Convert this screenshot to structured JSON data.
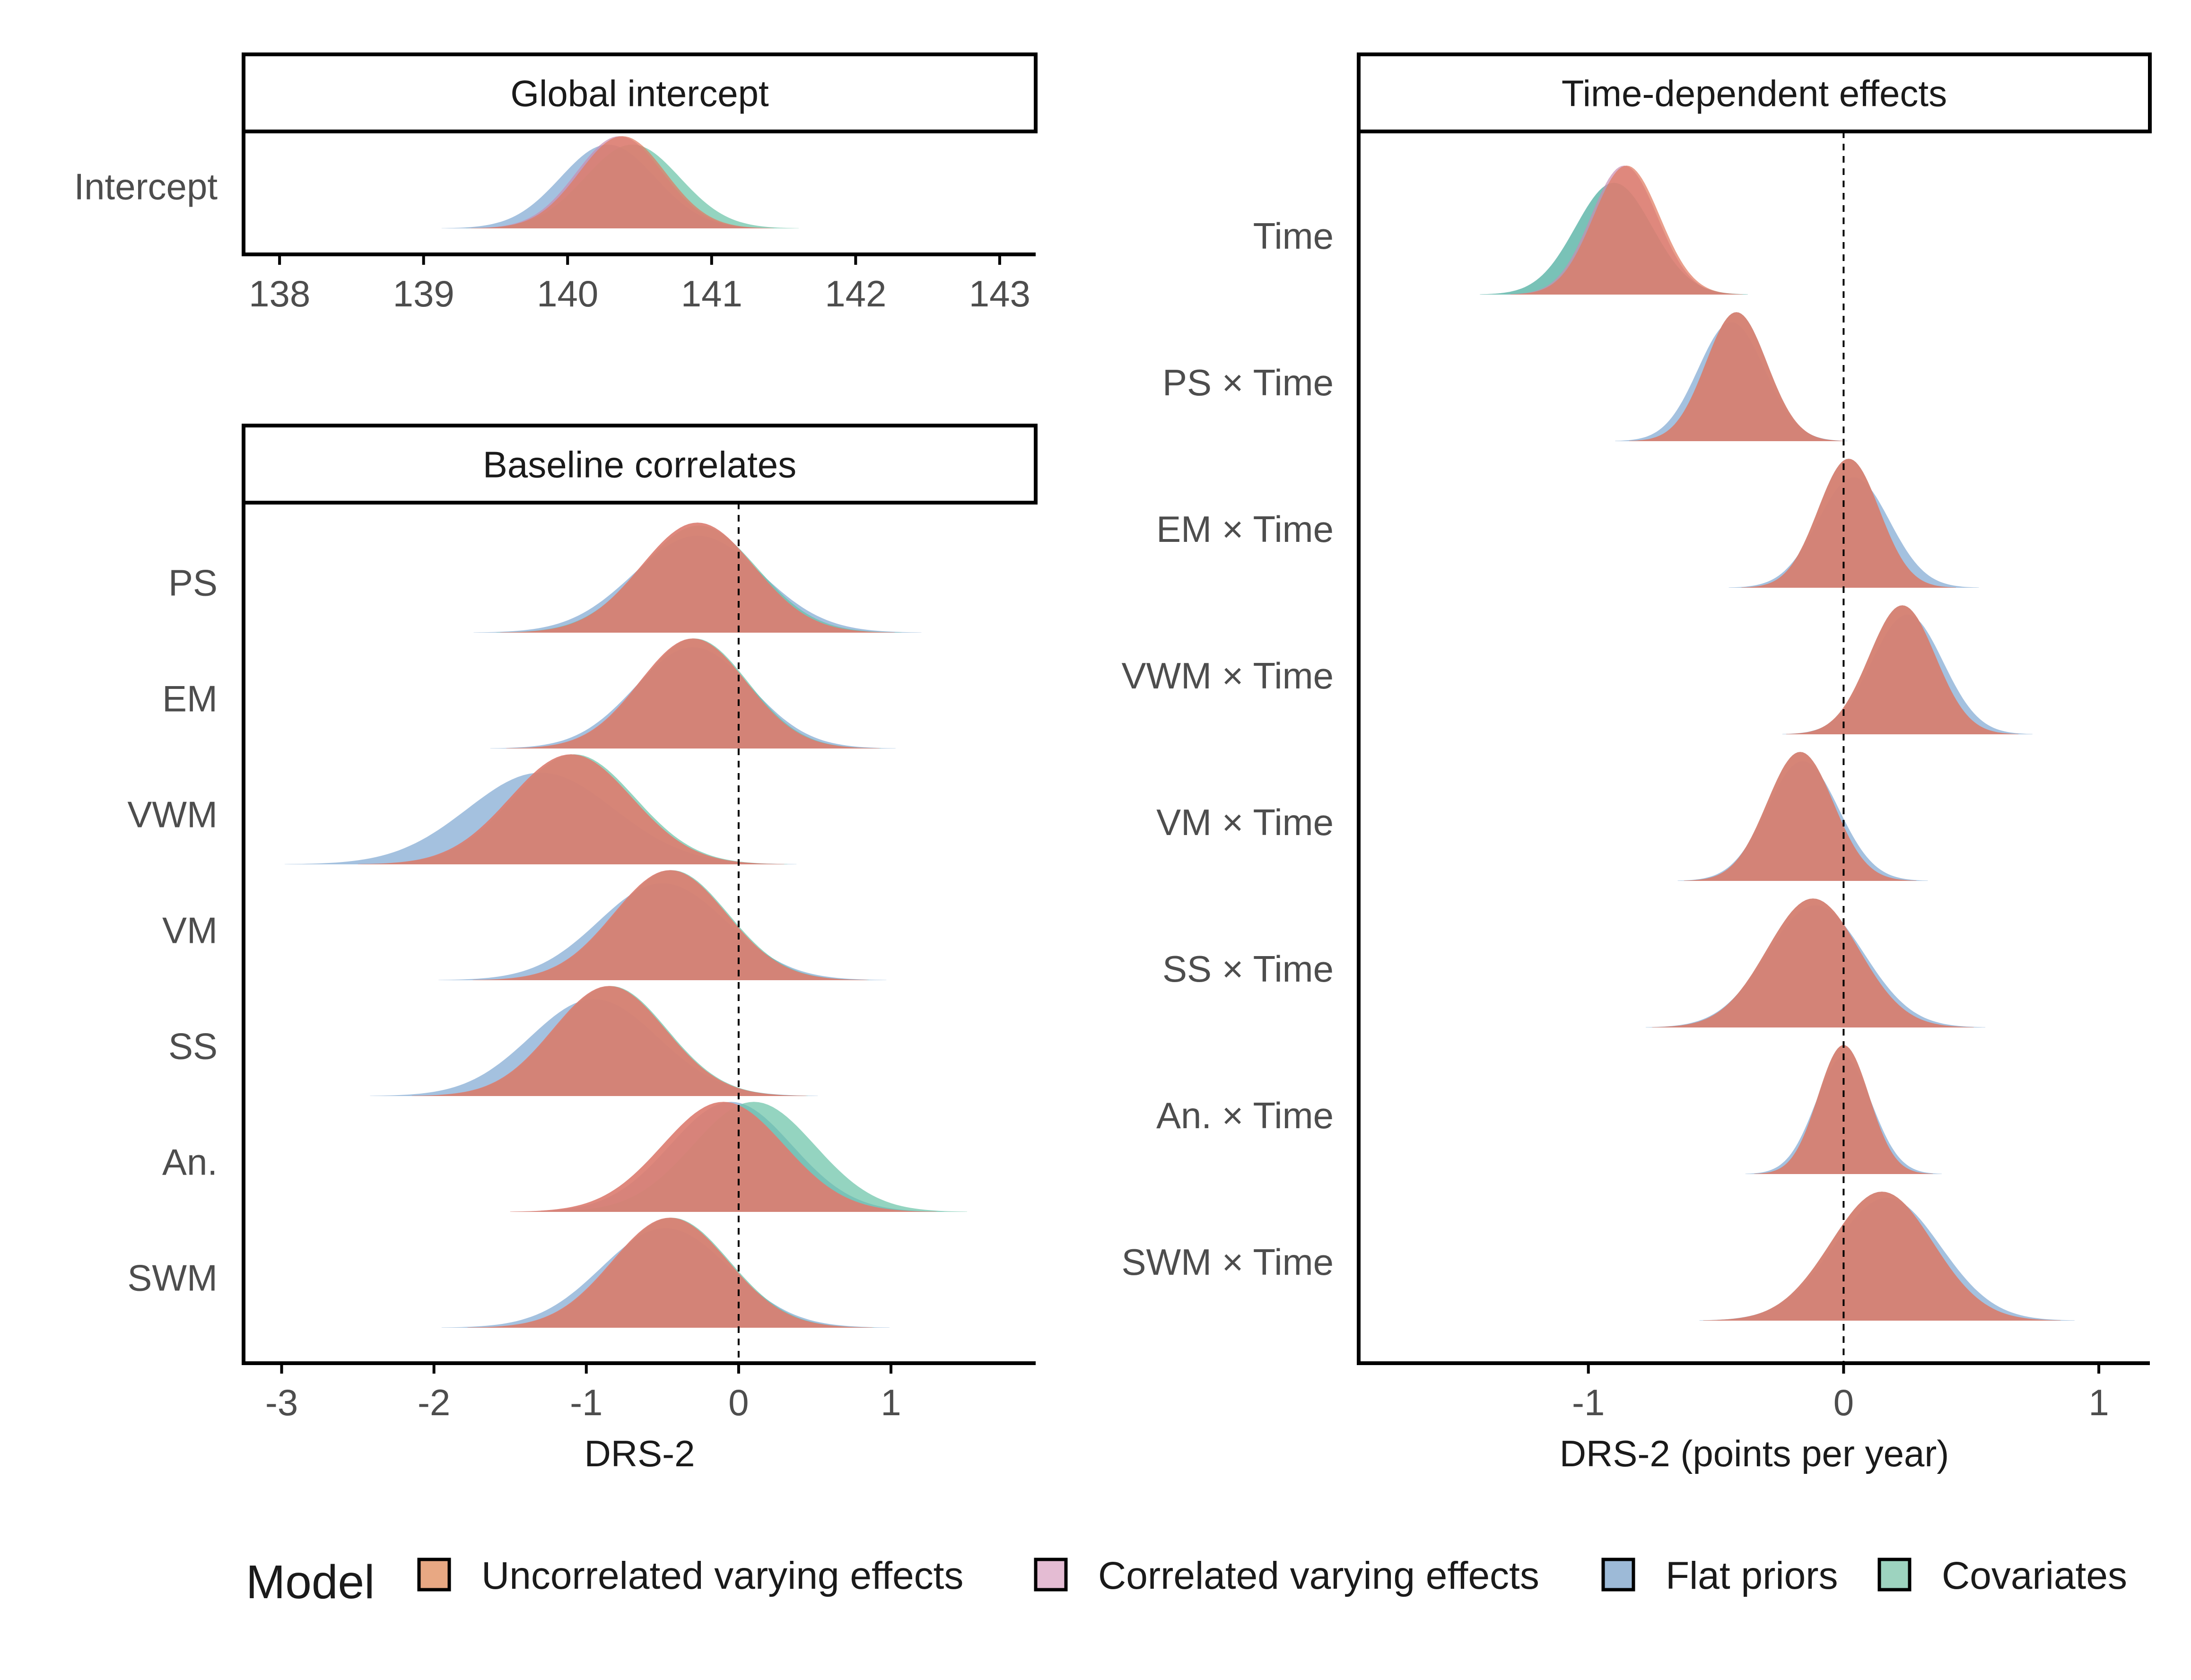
{
  "legend": {
    "title": "Model",
    "entries": [
      {
        "name": "Uncorrelated varying effects",
        "color": "#e8a883"
      },
      {
        "name": "Correlated varying effects",
        "color": "#e4bcd3"
      },
      {
        "name": "Flat priors",
        "color": "#9dbad7"
      },
      {
        "name": "Covariates",
        "color": "#9dd3bf"
      }
    ]
  },
  "render_colors": {
    "Uncorrelated varying effects": "#e07a5f",
    "Correlated varying effects": "#c98bb0",
    "Flat priors": "#7ea6d1",
    "Covariates": "#66c2a5",
    "overlap": "#9c7066"
  },
  "chart_data": [
    {
      "type": "area",
      "title": "Global intercept",
      "xlabel": "",
      "xlim": [
        137.75,
        143.25
      ],
      "xticks": [
        138,
        139,
        140,
        141,
        142,
        143
      ],
      "reference_line": null,
      "rows": [
        {
          "label": "Intercept",
          "series": [
            {
              "name": "Uncorrelated varying effects",
              "mean": 140.38,
              "sd": 0.3
            },
            {
              "name": "Correlated varying effects",
              "mean": 140.36,
              "sd": 0.3
            },
            {
              "name": "Flat priors",
              "mean": 140.28,
              "sd": 0.33
            },
            {
              "name": "Covariates",
              "mean": 140.45,
              "sd": 0.33
            }
          ]
        }
      ]
    },
    {
      "type": "area",
      "title": "Baseline correlates",
      "xlabel": "DRS-2",
      "xlim": [
        -3.25,
        1.95
      ],
      "xticks": [
        -3,
        -2,
        -1,
        0,
        1
      ],
      "reference_line": 0,
      "rows": [
        {
          "label": "PS",
          "series": [
            {
              "name": "Uncorrelated varying effects",
              "mean": -0.27,
              "sd": 0.37
            },
            {
              "name": "Correlated varying effects",
              "mean": -0.27,
              "sd": 0.37
            },
            {
              "name": "Flat priors",
              "mean": -0.27,
              "sd": 0.42
            },
            {
              "name": "Covariates",
              "mean": -0.26,
              "sd": 0.38
            }
          ]
        },
        {
          "label": "EM",
          "series": [
            {
              "name": "Uncorrelated varying effects",
              "mean": -0.3,
              "sd": 0.35
            },
            {
              "name": "Correlated varying effects",
              "mean": -0.3,
              "sd": 0.35
            },
            {
              "name": "Flat priors",
              "mean": -0.3,
              "sd": 0.38
            },
            {
              "name": "Covariates",
              "mean": -0.29,
              "sd": 0.35
            }
          ]
        },
        {
          "label": "VWM",
          "series": [
            {
              "name": "Uncorrelated varying effects",
              "mean": -1.1,
              "sd": 0.4
            },
            {
              "name": "Correlated varying effects",
              "mean": -1.1,
              "sd": 0.4
            },
            {
              "name": "Flat priors",
              "mean": -1.3,
              "sd": 0.48
            },
            {
              "name": "Covariates",
              "mean": -1.08,
              "sd": 0.4
            }
          ]
        },
        {
          "label": "VM",
          "series": [
            {
              "name": "Uncorrelated varying effects",
              "mean": -0.45,
              "sd": 0.37
            },
            {
              "name": "Correlated varying effects",
              "mean": -0.45,
              "sd": 0.37
            },
            {
              "name": "Flat priors",
              "mean": -0.5,
              "sd": 0.42
            },
            {
              "name": "Covariates",
              "mean": -0.44,
              "sd": 0.37
            }
          ]
        },
        {
          "label": "SS",
          "series": [
            {
              "name": "Uncorrelated varying effects",
              "mean": -0.85,
              "sd": 0.37
            },
            {
              "name": "Correlated varying effects",
              "mean": -0.85,
              "sd": 0.37
            },
            {
              "name": "Flat priors",
              "mean": -0.95,
              "sd": 0.42
            },
            {
              "name": "Covariates",
              "mean": -0.84,
              "sd": 0.37
            }
          ]
        },
        {
          "label": "An.",
          "series": [
            {
              "name": "Uncorrelated varying effects",
              "mean": -0.1,
              "sd": 0.4
            },
            {
              "name": "Correlated varying effects",
              "mean": -0.1,
              "sd": 0.4
            },
            {
              "name": "Flat priors",
              "mean": -0.05,
              "sd": 0.4
            },
            {
              "name": "Covariates",
              "mean": 0.1,
              "sd": 0.4
            }
          ]
        },
        {
          "label": "SWM",
          "series": [
            {
              "name": "Uncorrelated varying effects",
              "mean": -0.45,
              "sd": 0.38
            },
            {
              "name": "Correlated varying effects",
              "mean": -0.45,
              "sd": 0.38
            },
            {
              "name": "Flat priors",
              "mean": -0.48,
              "sd": 0.42
            },
            {
              "name": "Covariates",
              "mean": -0.44,
              "sd": 0.38
            }
          ]
        }
      ]
    },
    {
      "type": "area",
      "title": "Time-dependent effects",
      "xlabel": "DRS-2 (points per year)",
      "xlim": [
        -1.9,
        1.2
      ],
      "xticks": [
        -1,
        0,
        1
      ],
      "reference_line": 0,
      "rows": [
        {
          "label": "Time",
          "series": [
            {
              "name": "Uncorrelated varying effects",
              "mean": -0.85,
              "sd": 0.13
            },
            {
              "name": "Correlated varying effects",
              "mean": -0.86,
              "sd": 0.13
            },
            {
              "name": "Flat priors",
              "mean": -0.9,
              "sd": 0.15
            },
            {
              "name": "Covariates",
              "mean": -0.9,
              "sd": 0.15
            }
          ]
        },
        {
          "label": "PS × Time",
          "series": [
            {
              "name": "Uncorrelated varying effects",
              "mean": -0.42,
              "sd": 0.12
            },
            {
              "name": "Correlated varying effects",
              "mean": -0.42,
              "sd": 0.12
            },
            {
              "name": "Flat priors",
              "mean": -0.44,
              "sd": 0.13
            },
            {
              "name": "Covariates",
              "mean": -0.42,
              "sd": 0.12
            }
          ]
        },
        {
          "label": "EM × Time",
          "series": [
            {
              "name": "Uncorrelated varying effects",
              "mean": 0.02,
              "sd": 0.12
            },
            {
              "name": "Correlated varying effects",
              "mean": 0.02,
              "sd": 0.12
            },
            {
              "name": "Flat priors",
              "mean": 0.04,
              "sd": 0.14
            },
            {
              "name": "Covariates",
              "mean": 0.02,
              "sd": 0.12
            }
          ]
        },
        {
          "label": "VWM × Time",
          "series": [
            {
              "name": "Uncorrelated varying effects",
              "mean": 0.23,
              "sd": 0.13
            },
            {
              "name": "Correlated varying effects",
              "mean": 0.23,
              "sd": 0.13
            },
            {
              "name": "Flat priors",
              "mean": 0.25,
              "sd": 0.14
            },
            {
              "name": "Covariates",
              "mean": 0.23,
              "sd": 0.13
            }
          ]
        },
        {
          "label": "VM × Time",
          "series": [
            {
              "name": "Uncorrelated varying effects",
              "mean": -0.17,
              "sd": 0.13
            },
            {
              "name": "Correlated varying effects",
              "mean": -0.17,
              "sd": 0.13
            },
            {
              "name": "Flat priors",
              "mean": -0.16,
              "sd": 0.14
            },
            {
              "name": "Covariates",
              "mean": -0.17,
              "sd": 0.13
            }
          ]
        },
        {
          "label": "SS × Time",
          "series": [
            {
              "name": "Uncorrelated varying effects",
              "mean": -0.12,
              "sd": 0.18
            },
            {
              "name": "Correlated varying effects",
              "mean": -0.12,
              "sd": 0.18
            },
            {
              "name": "Flat priors",
              "mean": -0.11,
              "sd": 0.19
            },
            {
              "name": "Covariates",
              "mean": -0.12,
              "sd": 0.18
            }
          ]
        },
        {
          "label": "An. × Time",
          "series": [
            {
              "name": "Uncorrelated varying effects",
              "mean": 0.0,
              "sd": 0.1
            },
            {
              "name": "Correlated varying effects",
              "mean": 0.0,
              "sd": 0.1
            },
            {
              "name": "Flat priors",
              "mean": 0.0,
              "sd": 0.11
            },
            {
              "name": "Covariates",
              "mean": 0.0,
              "sd": 0.1
            }
          ]
        },
        {
          "label": "SWM × Time",
          "series": [
            {
              "name": "Uncorrelated varying effects",
              "mean": 0.15,
              "sd": 0.2
            },
            {
              "name": "Correlated varying effects",
              "mean": 0.15,
              "sd": 0.2
            },
            {
              "name": "Flat priors",
              "mean": 0.17,
              "sd": 0.21
            },
            {
              "name": "Covariates",
              "mean": 0.15,
              "sd": 0.2
            }
          ]
        }
      ]
    }
  ]
}
